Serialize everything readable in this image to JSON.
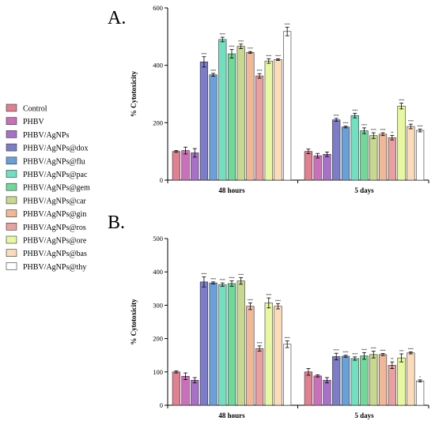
{
  "colors": [
    "#e08090",
    "#c870b8",
    "#a870c8",
    "#7c7cc8",
    "#6aa0d8",
    "#70e0c0",
    "#70d898",
    "#c8d890",
    "#f0b898",
    "#e8a0a0",
    "#e8f8a0",
    "#fcdcb8",
    "#ffffff"
  ],
  "legend": [
    "Control",
    "PHBV",
    "PHBV/AgNPs",
    "PHBV/AgNPs@dox",
    "PHBV/AgNPs@flu",
    "PHBV/AgNPs@pac",
    "PHBV/AgNPs@gem",
    "PHBV/AgNPs@car",
    "PHBV/AgNPs@gin",
    "PHBV/AgNPs@ros",
    "PHBV/AgNPs@ore",
    "PHBV/AgNPs@bas",
    "PHBV/AgNPs@thy"
  ],
  "chart_data": [
    {
      "type": "bar",
      "panel": "A.",
      "ylabel": "% Cytotoxicity",
      "ylim": [
        0,
        600
      ],
      "yticks": [
        "0",
        "200",
        "400",
        "600"
      ],
      "categories": [
        "48 hours",
        "5 days"
      ],
      "series": [
        {
          "name": "Control",
          "values": [
            100,
            100
          ],
          "errors": [
            3,
            8
          ],
          "sig": [
            "",
            ""
          ]
        },
        {
          "name": "PHBV",
          "values": [
            103,
            85
          ],
          "errors": [
            12,
            8
          ],
          "sig": [
            "",
            ""
          ]
        },
        {
          "name": "PHBV/AgNPs",
          "values": [
            95,
            90
          ],
          "errors": [
            15,
            8
          ],
          "sig": [
            "",
            ""
          ]
        },
        {
          "name": "PHBV/AgNPs@dox",
          "values": [
            412,
            210
          ],
          "errors": [
            18,
            5
          ],
          "sig": [
            "****",
            "****"
          ]
        },
        {
          "name": "PHBV/AgNPs@flu",
          "values": [
            367,
            185
          ],
          "errors": [
            5,
            3
          ],
          "sig": [
            "****",
            "****"
          ]
        },
        {
          "name": "PHBV/AgNPs@pac",
          "values": [
            490,
            225
          ],
          "errors": [
            8,
            8
          ],
          "sig": [
            "****",
            "****"
          ]
        },
        {
          "name": "PHBV/AgNPs@gem",
          "values": [
            440,
            172
          ],
          "errors": [
            15,
            10
          ],
          "sig": [
            "****",
            "****"
          ]
        },
        {
          "name": "PHBV/AgNPs@car",
          "values": [
            466,
            155
          ],
          "errors": [
            8,
            10
          ],
          "sig": [
            "****",
            "****"
          ]
        },
        {
          "name": "PHBV/AgNPs@gin",
          "values": [
            445,
            160
          ],
          "errors": [
            3,
            5
          ],
          "sig": [
            "****",
            "****"
          ]
        },
        {
          "name": "PHBV/AgNPs@ros",
          "values": [
            363,
            148
          ],
          "errors": [
            8,
            8
          ],
          "sig": [
            "****",
            "**"
          ]
        },
        {
          "name": "PHBV/AgNPs@ore",
          "values": [
            415,
            258
          ],
          "errors": [
            8,
            10
          ],
          "sig": [
            "****",
            "****"
          ]
        },
        {
          "name": "PHBV/AgNPs@bas",
          "values": [
            420,
            187
          ],
          "errors": [
            3,
            8
          ],
          "sig": [
            "****",
            "****"
          ]
        },
        {
          "name": "PHBV/AgNPs@thy",
          "values": [
            518,
            173
          ],
          "errors": [
            15,
            5
          ],
          "sig": [
            "****",
            "****"
          ]
        }
      ]
    },
    {
      "type": "bar",
      "panel": "B.",
      "ylabel": "% Cytotoxicity",
      "ylim": [
        0,
        500
      ],
      "yticks": [
        "0",
        "100",
        "200",
        "300",
        "400",
        "500"
      ],
      "categories": [
        "48 hours",
        "5 days"
      ],
      "series": [
        {
          "name": "Control",
          "values": [
            100,
            100
          ],
          "errors": [
            3,
            10
          ],
          "sig": [
            "",
            ""
          ]
        },
        {
          "name": "PHBV",
          "values": [
            87,
            88
          ],
          "errors": [
            10,
            3
          ],
          "sig": [
            "",
            ""
          ]
        },
        {
          "name": "PHBV/AgNPs",
          "values": [
            75,
            75
          ],
          "errors": [
            8,
            8
          ],
          "sig": [
            "",
            ""
          ]
        },
        {
          "name": "PHBV/AgNPs@dox",
          "values": [
            370,
            146
          ],
          "errors": [
            15,
            10
          ],
          "sig": [
            "****",
            "****"
          ]
        },
        {
          "name": "PHBV/AgNPs@flu",
          "values": [
            367,
            147
          ],
          "errors": [
            3,
            3
          ],
          "sig": [
            "****",
            "****"
          ]
        },
        {
          "name": "PHBV/AgNPs@pac",
          "values": [
            362,
            140
          ],
          "errors": [
            5,
            5
          ],
          "sig": [
            "****",
            "****"
          ]
        },
        {
          "name": "PHBV/AgNPs@gem",
          "values": [
            365,
            148
          ],
          "errors": [
            8,
            10
          ],
          "sig": [
            "****",
            "****"
          ]
        },
        {
          "name": "PHBV/AgNPs@car",
          "values": [
            373,
            152
          ],
          "errors": [
            10,
            10
          ],
          "sig": [
            "****",
            "****"
          ]
        },
        {
          "name": "PHBV/AgNPs@gin",
          "values": [
            297,
            152
          ],
          "errors": [
            10,
            3
          ],
          "sig": [
            "****",
            "****"
          ]
        },
        {
          "name": "PHBV/AgNPs@ros",
          "values": [
            170,
            120
          ],
          "errors": [
            8,
            10
          ],
          "sig": [
            "****",
            "**"
          ]
        },
        {
          "name": "PHBV/AgNPs@ore",
          "values": [
            307,
            142
          ],
          "errors": [
            15,
            12
          ],
          "sig": [
            "****",
            "***"
          ]
        },
        {
          "name": "PHBV/AgNPs@bas",
          "values": [
            297,
            157
          ],
          "errors": [
            8,
            3
          ],
          "sig": [
            "****",
            "****"
          ]
        },
        {
          "name": "PHBV/AgNPs@thy",
          "values": [
            183,
            73
          ],
          "errors": [
            10,
            3
          ],
          "sig": [
            "****",
            "*"
          ]
        }
      ]
    }
  ]
}
